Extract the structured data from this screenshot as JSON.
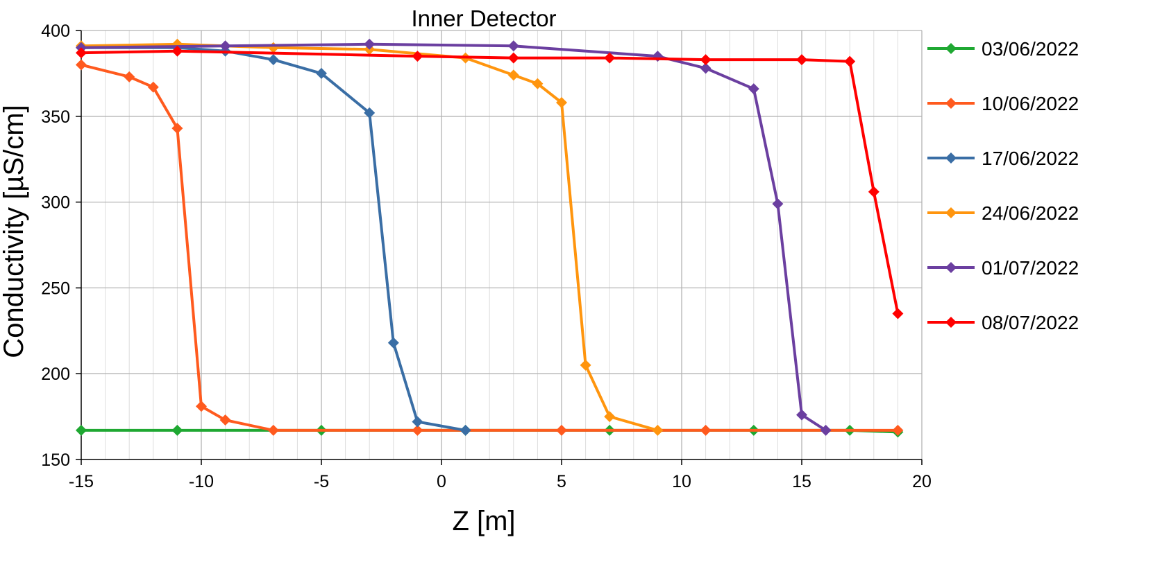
{
  "chart_data": {
    "type": "line",
    "title": "Inner Detector",
    "xlabel": "Z [m]",
    "ylabel": "Conductivity [µS/cm]",
    "xlim": [
      -15,
      20
    ],
    "ylim": [
      150,
      400
    ],
    "xticks": [
      -15,
      -10,
      -5,
      0,
      5,
      10,
      15,
      20
    ],
    "yticks": [
      150,
      200,
      250,
      300,
      350,
      400
    ],
    "grid": true,
    "legend_position": "right",
    "series": [
      {
        "name": "03/06/2022",
        "color": "#1fa832",
        "x": [
          -15,
          -11,
          -5,
          1,
          7,
          13,
          17,
          19
        ],
        "y": [
          167,
          167,
          167,
          167,
          167,
          167,
          167,
          166
        ]
      },
      {
        "name": "10/06/2022",
        "color": "#ff5a1e",
        "x": [
          -15,
          -13,
          -12,
          -11,
          -10,
          -9,
          -7,
          -1,
          5,
          11,
          19
        ],
        "y": [
          380,
          373,
          367,
          343,
          181,
          173,
          167,
          167,
          167,
          167,
          167
        ]
      },
      {
        "name": "17/06/2022",
        "color": "#3a6ea5",
        "x": [
          -15,
          -11,
          -9,
          -7,
          -5,
          -3,
          -2,
          -1,
          1
        ],
        "y": [
          390,
          390,
          388,
          383,
          375,
          352,
          218,
          172,
          167
        ]
      },
      {
        "name": "24/06/2022",
        "color": "#ff950e",
        "x": [
          -15,
          -11,
          -7,
          -3,
          1,
          3,
          4,
          5,
          6,
          7,
          9
        ],
        "y": [
          391,
          392,
          390,
          389,
          384,
          374,
          369,
          358,
          205,
          175,
          167
        ]
      },
      {
        "name": "01/07/2022",
        "color": "#6b3fa0",
        "x": [
          -15,
          -9,
          -3,
          3,
          9,
          11,
          13,
          14,
          15,
          16
        ],
        "y": [
          390,
          391,
          392,
          391,
          385,
          378,
          366,
          299,
          176,
          167
        ]
      },
      {
        "name": "08/07/2022",
        "color": "#ff0000",
        "x": [
          -15,
          -11,
          -1,
          3,
          7,
          11,
          15,
          17,
          18,
          19
        ],
        "y": [
          387,
          388,
          385,
          384,
          384,
          383,
          383,
          382,
          306,
          235
        ]
      }
    ]
  }
}
